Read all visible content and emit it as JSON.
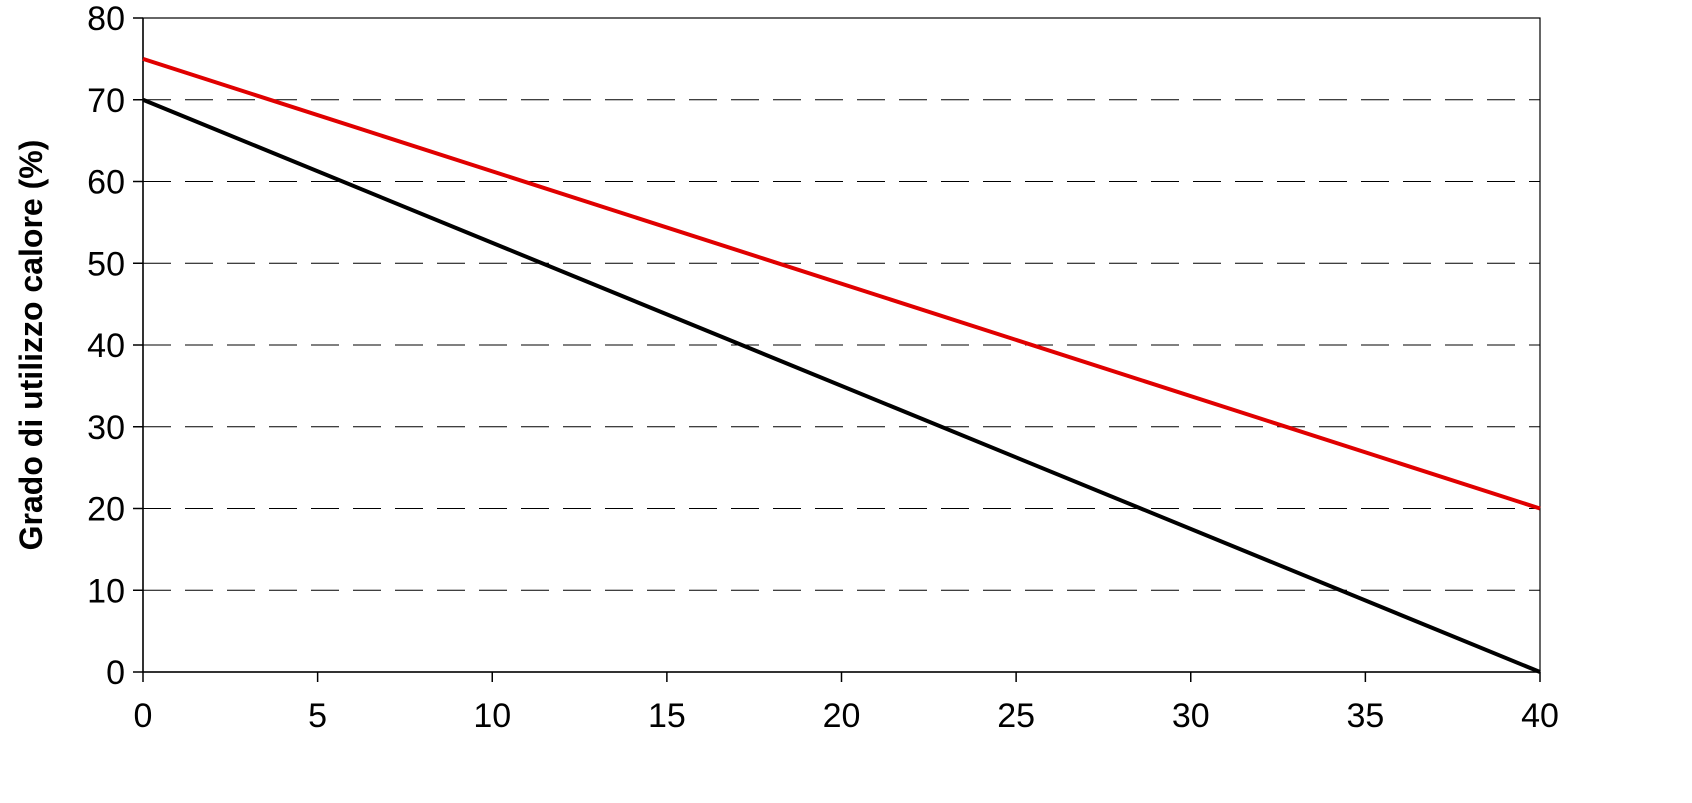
{
  "chart_data": {
    "type": "line",
    "title": "",
    "xlabel": "",
    "ylabel": "Grado di utilizzo calore (%)",
    "xlim": [
      0,
      40
    ],
    "ylim": [
      0,
      80
    ],
    "x_ticks": [
      0,
      5,
      10,
      15,
      20,
      25,
      30,
      35,
      40
    ],
    "y_ticks": [
      0,
      10,
      20,
      30,
      40,
      50,
      60,
      70,
      80
    ],
    "x_tick_labels": [
      "0",
      "5",
      "10",
      "15",
      "20",
      "25",
      "30",
      "35",
      "40"
    ],
    "y_tick_labels": [
      "0",
      "10",
      "20",
      "30",
      "40",
      "50",
      "60",
      "70",
      "80"
    ],
    "grid": "horizontal dashed",
    "legend": "none",
    "series": [
      {
        "color": "#e00000",
        "x": [
          0,
          40
        ],
        "y": [
          75,
          20
        ]
      },
      {
        "color": "#000000",
        "x": [
          0,
          40
        ],
        "y": [
          70,
          0
        ]
      }
    ]
  }
}
